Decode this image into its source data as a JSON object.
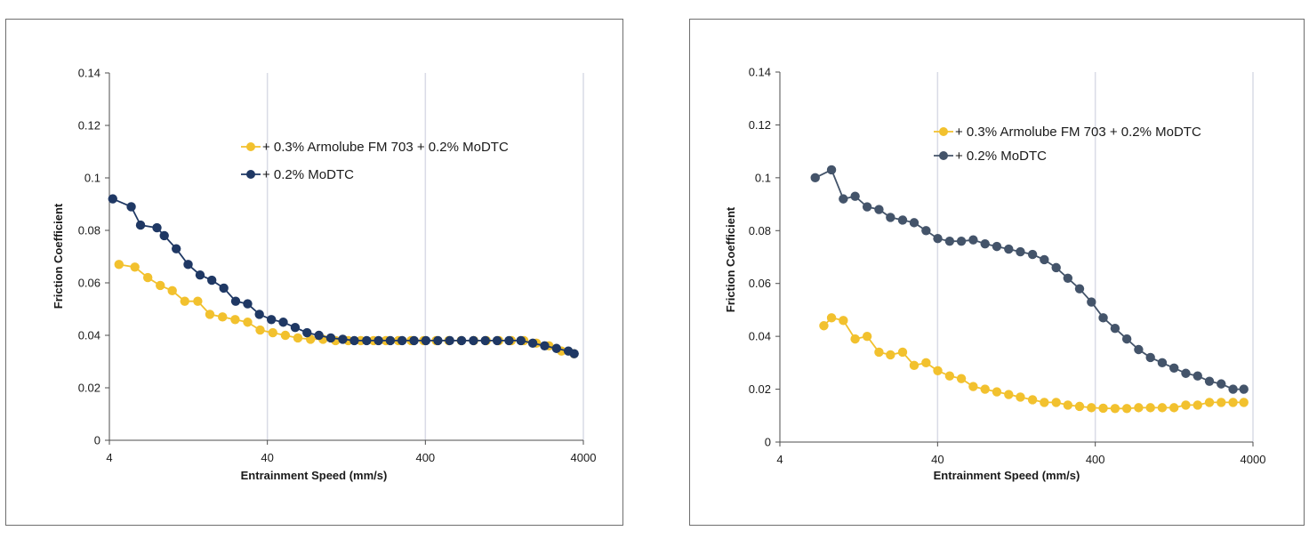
{
  "chart_data": [
    {
      "type": "line",
      "xscale": "log",
      "xlim": [
        4,
        4000
      ],
      "ylim": [
        0,
        0.14
      ],
      "xticks": [
        "4",
        "40",
        "400",
        "4000"
      ],
      "yticks": [
        "0",
        "0.02",
        "0.04",
        "0.06",
        "0.08",
        "0.1",
        "0.12",
        "0.14"
      ],
      "xlabel": "Entrainment Speed (mm/s)",
      "ylabel": "Friction Coefficient",
      "grid": "vertical",
      "legend_position": "top-right",
      "series": [
        {
          "name": "+ 0.3% Armolube FM 703 + 0.2% MoDTC",
          "color": "#f2c12e",
          "x": [
            4.6,
            5.8,
            7.0,
            8.4,
            10.0,
            12.0,
            14.5,
            17.3,
            20.8,
            25.0,
            30.0,
            36.0,
            43.3,
            52.0,
            62.4,
            75.0,
            90.0,
            108,
            130,
            156,
            188,
            225,
            270,
            325,
            390,
            468,
            562,
            675,
            810,
            972,
            1167,
            1400,
            1681,
            2018,
            2422,
            2907,
            3488
          ],
          "y": [
            0.067,
            0.066,
            0.062,
            0.059,
            0.057,
            0.053,
            0.053,
            0.048,
            0.047,
            0.046,
            0.045,
            0.042,
            0.041,
            0.04,
            0.039,
            0.0385,
            0.0385,
            0.038,
            0.038,
            0.038,
            0.038,
            0.038,
            0.038,
            0.038,
            0.038,
            0.038,
            0.038,
            0.038,
            0.038,
            0.038,
            0.038,
            0.038,
            0.038,
            0.037,
            0.036,
            0.034,
            0.033
          ]
        },
        {
          "name": "+ 0.2% MoDTC",
          "color": "#1f3864",
          "x": [
            4.2,
            5.5,
            6.3,
            8.0,
            8.9,
            10.6,
            12.6,
            15.0,
            17.8,
            21.2,
            25.2,
            30.0,
            35.6,
            42.4,
            50.4,
            60.0,
            71.3,
            84.8,
            100.8,
            120,
            142,
            170,
            202,
            240,
            285,
            339,
            403,
            480,
            570,
            678,
            806,
            958,
            1139,
            1354,
            1610,
            1913,
            2275,
            2704,
            3214,
            3500
          ],
          "y": [
            0.092,
            0.089,
            0.082,
            0.081,
            0.078,
            0.073,
            0.067,
            0.063,
            0.061,
            0.058,
            0.053,
            0.052,
            0.048,
            0.046,
            0.045,
            0.043,
            0.041,
            0.04,
            0.039,
            0.0385,
            0.038,
            0.038,
            0.038,
            0.038,
            0.038,
            0.038,
            0.038,
            0.038,
            0.038,
            0.038,
            0.038,
            0.038,
            0.038,
            0.038,
            0.038,
            0.037,
            0.036,
            0.035,
            0.034,
            0.033
          ]
        }
      ]
    },
    {
      "type": "line",
      "xscale": "log",
      "xlim": [
        4,
        4000
      ],
      "ylim": [
        0,
        0.14
      ],
      "xticks": [
        "4",
        "40",
        "400",
        "4000"
      ],
      "yticks": [
        "0",
        "0.02",
        "0.04",
        "0.06",
        "0.08",
        "0.1",
        "0.12",
        "0.14"
      ],
      "xlabel": "Entrainment Speed (mm/s)",
      "ylabel": "Friction Coefficient",
      "grid": "vertical",
      "legend_position": "top-right",
      "series": [
        {
          "name": "+ 0.3% Armolube FM 703 + 0.2% MoDTC",
          "color": "#f2c12e",
          "x": [
            7.6,
            8.5,
            10.1,
            12.0,
            14.3,
            17.0,
            20.1,
            24.0,
            28.4,
            33.8,
            40.1,
            47.7,
            56.6,
            67.3,
            80.0,
            95.0,
            113,
            134,
            160,
            190,
            226,
            268,
            318,
            378,
            449,
            534,
            634,
            753,
            895,
            1063,
            1263,
            1500,
            1783,
            2118,
            2516,
            2990,
            3500
          ],
          "y": [
            0.044,
            0.047,
            0.046,
            0.039,
            0.04,
            0.034,
            0.033,
            0.034,
            0.029,
            0.03,
            0.027,
            0.025,
            0.024,
            0.021,
            0.02,
            0.019,
            0.018,
            0.017,
            0.016,
            0.015,
            0.015,
            0.014,
            0.0135,
            0.013,
            0.0128,
            0.0127,
            0.0127,
            0.013,
            0.013,
            0.013,
            0.013,
            0.014,
            0.014,
            0.015,
            0.015,
            0.015,
            0.015
          ]
        },
        {
          "name": "+ 0.2% MoDTC",
          "color": "#44546a",
          "x": [
            6.7,
            8.5,
            10.1,
            12.0,
            14.3,
            17.0,
            20.1,
            24.0,
            28.4,
            33.8,
            40.1,
            47.7,
            56.6,
            67.3,
            80.0,
            95.0,
            113,
            134,
            160,
            190,
            226,
            268,
            318,
            378,
            449,
            534,
            634,
            753,
            895,
            1063,
            1263,
            1500,
            1783,
            2118,
            2516,
            2990,
            3500
          ],
          "y": [
            0.1,
            0.103,
            0.092,
            0.093,
            0.089,
            0.088,
            0.085,
            0.084,
            0.083,
            0.08,
            0.077,
            0.076,
            0.076,
            0.0765,
            0.075,
            0.074,
            0.073,
            0.072,
            0.071,
            0.069,
            0.066,
            0.062,
            0.058,
            0.053,
            0.047,
            0.043,
            0.039,
            0.035,
            0.032,
            0.03,
            0.028,
            0.026,
            0.025,
            0.023,
            0.022,
            0.02,
            0.02
          ]
        }
      ]
    }
  ]
}
